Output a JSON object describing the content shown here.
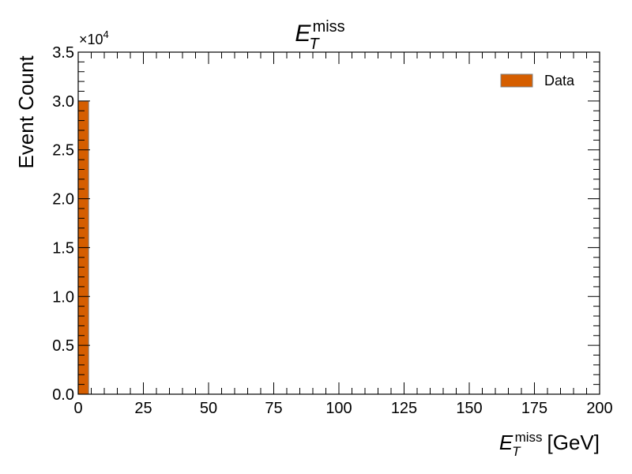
{
  "chart_data": {
    "type": "bar",
    "title": {
      "symbol": "E",
      "subscript": "T",
      "superscript": "miss"
    },
    "xlabel": {
      "symbol": "E",
      "subscript": "T",
      "superscript": "miss",
      "unit": "[GeV]"
    },
    "ylabel": "Event Count",
    "y_offset_label": {
      "base": "×10",
      "exponent": "4"
    },
    "xlim": [
      0,
      200
    ],
    "ylim": [
      0,
      35000
    ],
    "y_scale_factor": 10000,
    "x_ticks": [
      "0",
      "25",
      "50",
      "75",
      "100",
      "125",
      "150",
      "175",
      "200"
    ],
    "y_ticks": [
      "0.0",
      "0.5",
      "1.0",
      "1.5",
      "2.0",
      "2.5",
      "3.0",
      "3.5"
    ],
    "bin_width": 4,
    "series": [
      {
        "name": "Data",
        "color": "#d55e00",
        "edge_color": "#808080",
        "bins": [
          {
            "x_low": 0,
            "x_high": 4,
            "value": 30000
          }
        ]
      }
    ],
    "legend": {
      "position": "top-right",
      "entries": [
        "Data"
      ]
    },
    "grid": false
  }
}
